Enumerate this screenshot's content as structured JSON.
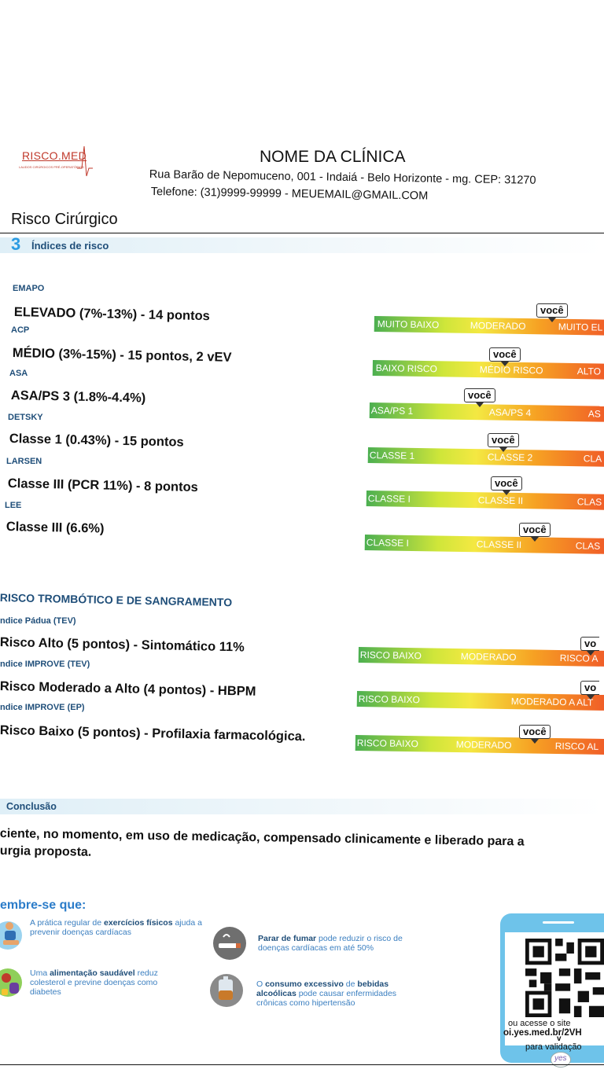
{
  "header": {
    "logo_text": "RISCO.MED",
    "logo_subtext": "LAUDOS CIRÚRGICOS PRÉ-OPERATÓRIOS",
    "clinic_name": "NOME DA CLÍNICA",
    "address": "Rua Barão de Nepomuceno, 001 - Indaiá - Belo Horizonte - mg. CEP: 31270",
    "phone_email": "Telefone: (31)9999-99999 - MEUEMAIL@GMAIL.COM"
  },
  "section_title": "Risco Cirúrgico",
  "indices": {
    "number": "3",
    "title": "Índices de risco",
    "you_label": "você",
    "items": [
      {
        "label": "EMAPO",
        "value": "ELEVADO (7%-13%) - 14 pontos",
        "scale": [
          "MUITO BAIXO",
          "MODERADO",
          "MUITO EL"
        ]
      },
      {
        "label": "ACP",
        "value": "MÉDIO (3%-15%) - 15 pontos, 2 vEV",
        "scale": [
          "BAIXO RISCO",
          "MÉDIO RISCO",
          "ALTO"
        ]
      },
      {
        "label": "ASA",
        "value": "ASA/PS 3 (1.8%-4.4%)",
        "scale": [
          "ASA/PS 1",
          "ASA/PS 4",
          "AS"
        ]
      },
      {
        "label": "DETSKY",
        "value": "Classe 1 (0.43%) - 15 pontos",
        "scale": [
          "CLASSE 1",
          "CLASSE 2",
          "CLA"
        ]
      },
      {
        "label": "LARSEN",
        "value": "Classe III (PCR 11%) - 8 pontos",
        "scale": [
          "CLASSE I",
          "CLASSE II",
          "CLAS"
        ]
      },
      {
        "label": "LEE",
        "value": "Classe III (6.6%)",
        "scale": [
          "CLASSE I",
          "CLASSE II",
          "CLAS"
        ]
      }
    ]
  },
  "thrombotic": {
    "title": "RISCO TROMBÓTICO E DE SANGRAMENTO",
    "you_label": "você",
    "you_label_cut": "vo",
    "items": [
      {
        "label": "ndice Pádua (TEV)",
        "value": "Risco Alto (5 pontos) - Sintomático 11%",
        "scale": [
          "RISCO BAIXO",
          "MODERADO",
          "RISCO A"
        ]
      },
      {
        "label": "ndice IMPROVE (TEV)",
        "value": "Risco Moderado a Alto (4 pontos) - HBPM",
        "scale": [
          "RISCO BAIXO",
          "MODERADO A ALT"
        ]
      },
      {
        "label": "ndice IMPROVE (EP)",
        "value": "Risco Baixo (5 pontos) - Profilaxia farmacológica.",
        "scale": [
          "RISCO BAIXO",
          "MODERADO",
          "RISCO AL"
        ]
      }
    ]
  },
  "conclusion": {
    "title": "Conclusão",
    "line1": "ciente, no momento, em uso de medicação, compensado clinicamente e liberado para a",
    "line2": "urgia proposta."
  },
  "reminders": {
    "title": "embre-se que:",
    "tips": [
      {
        "pre": "A prática regular de ",
        "bold": "exercícios físicos",
        "post": " ajuda a prevenir doenças cardíacas"
      },
      {
        "pre": "Uma ",
        "bold": "alimentação saudável",
        "post": " reduz colesterol e previne doenças como diabetes"
      },
      {
        "pre": "",
        "bold": "Parar de fumar",
        "post": " pode reduzir o risco de doenças cardíacas em até 50%"
      },
      {
        "pre": "O ",
        "bold": "consumo excessivo",
        "mid": " de ",
        "bold2": "bebidas alcoólicas",
        "post": " pode causar enfermidades crônicas como hipertensão"
      }
    ]
  },
  "validation": {
    "line1": "ou acesse o site",
    "line2": "oi.yes.med.br/2VH",
    "line3": "v",
    "line4": "para validação",
    "badge": "yes"
  },
  "colors": {
    "accent_blue": "#1f4e79",
    "light_blue": "#2b9be2",
    "phone_card": "#6ec3ea",
    "scale_green": "#4caf50",
    "scale_yellow": "#f4e842",
    "scale_orange": "#f6a123",
    "scale_red": "#f05a28"
  }
}
